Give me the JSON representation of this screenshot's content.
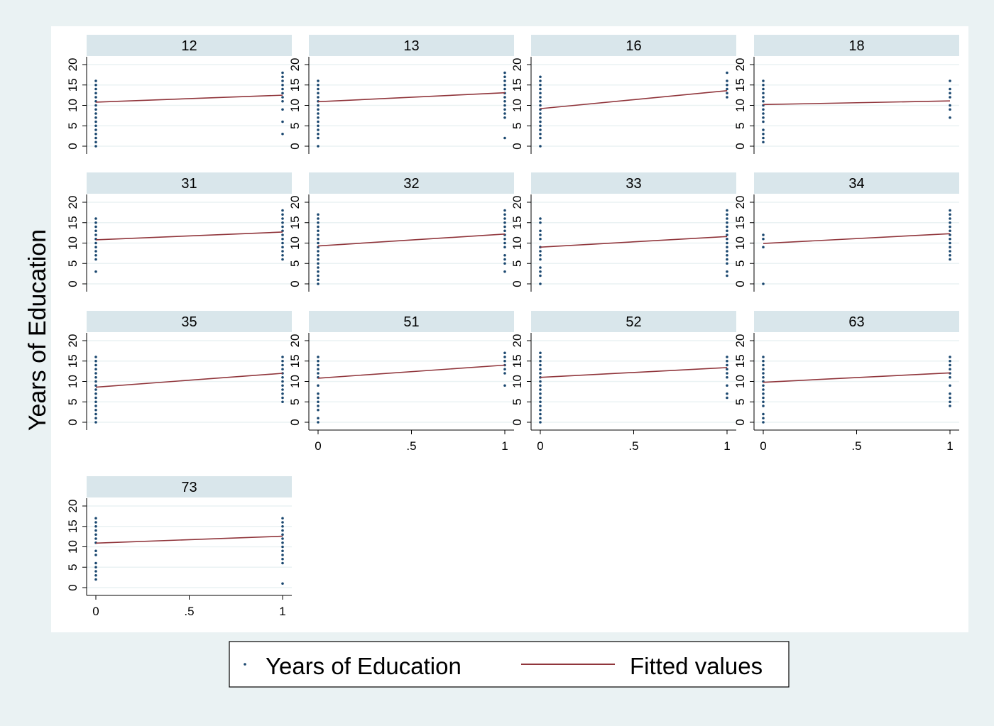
{
  "chart_data": {
    "type": "scatter",
    "ylabel": "Years of Education",
    "xlim": [
      0,
      1
    ],
    "ylim": [
      0,
      20
    ],
    "xticks": [
      "0",
      ".5",
      "1"
    ],
    "yticks": [
      "0",
      "5",
      "10",
      "15",
      "20"
    ],
    "grid": true,
    "legend_position": "bottom",
    "colors": {
      "page_bg": "#eaf2f3",
      "plot_bg": "#ffffff",
      "strip_bg": "#d9e6eb",
      "marker": "#1a476f",
      "fit_line": "#90353b",
      "grid": "#eaf2f3"
    },
    "legend": [
      {
        "label": "Years of Education",
        "kind": "marker"
      },
      {
        "label": "Fitted values",
        "kind": "line"
      }
    ],
    "panels": [
      {
        "label": "12",
        "fit": [
          10.8,
          12.5
        ],
        "x0": [
          0,
          1,
          2,
          3,
          4,
          5,
          6,
          7,
          8,
          9,
          10,
          11,
          12,
          13,
          14,
          15,
          16
        ],
        "x1": [
          3,
          6,
          9,
          11,
          12,
          13,
          14,
          15,
          16,
          17,
          18
        ]
      },
      {
        "label": "13",
        "fit": [
          10.9,
          13.1
        ],
        "x0": [
          0,
          2,
          3,
          4,
          5,
          6,
          7,
          8,
          9,
          10,
          11,
          12,
          13,
          14,
          15,
          16
        ],
        "x1": [
          2,
          7,
          8,
          9,
          10,
          11,
          12,
          13,
          14,
          15,
          16,
          17,
          18
        ]
      },
      {
        "label": "16",
        "fit": [
          9.2,
          13.6
        ],
        "x0": [
          0,
          2,
          3,
          4,
          5,
          6,
          7,
          8,
          9,
          10,
          11,
          12,
          13,
          14,
          15,
          16,
          17
        ],
        "x1": [
          12,
          13,
          14,
          15,
          16,
          18
        ]
      },
      {
        "label": "18",
        "fit": [
          10.2,
          11.1
        ],
        "x0": [
          1,
          2,
          3,
          4,
          6,
          7,
          8,
          9,
          10,
          11,
          12,
          13,
          14,
          15,
          16
        ],
        "x1": [
          7,
          9,
          10,
          12,
          13,
          14,
          16
        ]
      },
      {
        "label": "31",
        "fit": [
          10.8,
          12.7
        ],
        "x0": [
          3,
          6,
          7,
          8,
          9,
          10,
          11,
          12,
          13,
          14,
          15,
          16
        ],
        "x1": [
          6,
          7,
          8,
          9,
          10,
          11,
          12,
          13,
          14,
          15,
          16,
          17,
          18
        ]
      },
      {
        "label": "32",
        "fit": [
          9.3,
          12.2
        ],
        "x0": [
          0,
          1,
          2,
          3,
          4,
          5,
          6,
          7,
          8,
          9,
          10,
          11,
          12,
          13,
          14,
          15,
          16,
          17
        ],
        "x1": [
          3,
          5,
          6,
          7,
          9,
          10,
          11,
          12,
          13,
          14,
          15,
          16,
          17,
          18
        ]
      },
      {
        "label": "33",
        "fit": [
          9.0,
          11.6
        ],
        "x0": [
          0,
          2,
          3,
          4,
          6,
          7,
          8,
          9,
          11,
          12,
          13,
          15,
          16
        ],
        "x1": [
          2,
          3,
          5,
          6,
          7,
          8,
          9,
          10,
          11,
          12,
          13,
          14,
          15,
          16,
          17,
          18
        ]
      },
      {
        "label": "34",
        "fit": [
          9.9,
          12.3
        ],
        "x0": [
          0,
          9,
          11,
          12
        ],
        "x1": [
          6,
          7,
          8,
          9,
          10,
          11,
          12,
          13,
          14,
          15,
          16,
          17,
          18
        ]
      },
      {
        "label": "35",
        "fit": [
          8.6,
          12.0
        ],
        "x0": [
          0,
          1,
          2,
          3,
          4,
          5,
          6,
          7,
          8,
          9,
          10,
          11,
          12,
          13,
          14,
          15,
          16
        ],
        "x1": [
          5,
          6,
          7,
          8,
          9,
          10,
          11,
          12,
          13,
          14,
          15,
          16
        ]
      },
      {
        "label": "51",
        "fit": [
          10.8,
          14.0
        ],
        "x0": [
          0,
          1,
          3,
          4,
          5,
          6,
          7,
          9,
          11,
          12,
          13,
          14,
          15,
          16
        ],
        "x1": [
          9,
          12,
          13,
          14,
          15,
          16,
          17
        ]
      },
      {
        "label": "52",
        "fit": [
          11.0,
          13.4
        ],
        "x0": [
          0,
          1,
          2,
          3,
          4,
          5,
          6,
          7,
          8,
          9,
          10,
          11,
          12,
          13,
          14,
          15,
          16,
          17
        ],
        "x1": [
          6,
          7,
          9,
          11,
          12,
          13,
          14,
          15,
          16
        ]
      },
      {
        "label": "63",
        "fit": [
          9.8,
          12.1
        ],
        "x0": [
          0,
          1,
          2,
          4,
          5,
          6,
          7,
          8,
          9,
          10,
          11,
          12,
          13,
          14,
          15,
          16
        ],
        "x1": [
          4,
          5,
          6,
          7,
          9,
          11,
          12,
          13,
          14,
          15,
          16
        ]
      },
      {
        "label": "73",
        "fit": [
          10.9,
          12.6
        ],
        "x0": [
          2,
          3,
          4,
          5,
          6,
          8,
          9,
          11,
          12,
          13,
          14,
          15,
          16,
          17
        ],
        "x1": [
          1,
          6,
          7,
          8,
          9,
          10,
          11,
          12,
          13,
          14,
          15,
          16,
          17
        ]
      }
    ]
  }
}
